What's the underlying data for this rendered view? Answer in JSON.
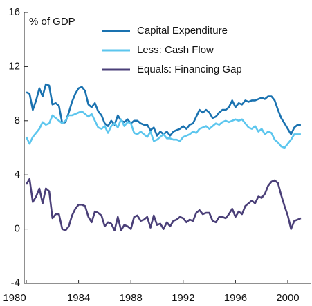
{
  "chart_data": {
    "type": "line",
    "annotations": [
      "% of GDP"
    ],
    "x": [
      1980,
      1980.25,
      1980.5,
      1980.75,
      1981,
      1981.25,
      1981.5,
      1981.75,
      1982,
      1982.25,
      1982.5,
      1982.75,
      1983,
      1983.25,
      1983.5,
      1983.75,
      1984,
      1984.25,
      1984.5,
      1984.75,
      1985,
      1985.25,
      1985.5,
      1985.75,
      1986,
      1986.25,
      1986.5,
      1986.75,
      1987,
      1987.25,
      1987.5,
      1987.75,
      1988,
      1988.25,
      1988.5,
      1988.75,
      1989,
      1989.25,
      1989.5,
      1989.75,
      1990,
      1990.25,
      1990.5,
      1990.75,
      1991,
      1991.25,
      1991.5,
      1991.75,
      1992,
      1992.25,
      1992.5,
      1992.75,
      1993,
      1993.25,
      1993.5,
      1993.75,
      1994,
      1994.25,
      1994.5,
      1994.75,
      1995,
      1995.25,
      1995.5,
      1995.75,
      1996,
      1996.25,
      1996.5,
      1996.75,
      1997,
      1997.25,
      1997.5,
      1997.75,
      1998,
      1998.25,
      1998.5,
      1998.75,
      1999,
      1999.25,
      1999.5,
      1999.75,
      2000,
      2000.25,
      2000.5,
      2000.75,
      2001
    ],
    "series": [
      {
        "name": "Capital Expenditure",
        "color": "#1a72b0",
        "values": [
          10.1,
          10.0,
          8.8,
          9.5,
          10.4,
          9.8,
          10.7,
          10.6,
          9.2,
          9.3,
          9.1,
          7.8,
          7.9,
          8.6,
          9.4,
          10.0,
          10.4,
          10.5,
          10.2,
          9.2,
          9.0,
          9.3,
          8.7,
          8.4,
          7.8,
          7.6,
          8.0,
          7.7,
          8.4,
          8.0,
          7.9,
          8.1,
          7.8,
          8.0,
          8.0,
          7.8,
          7.7,
          7.7,
          7.3,
          7.5,
          6.9,
          7.2,
          7.0,
          7.2,
          6.9,
          7.2,
          7.3,
          7.4,
          7.6,
          7.4,
          7.7,
          7.8,
          8.3,
          8.8,
          8.6,
          8.8,
          8.6,
          8.2,
          8.3,
          8.6,
          8.8,
          8.8,
          9.0,
          9.5,
          9.0,
          9.3,
          9.2,
          9.5,
          9.4,
          9.5,
          9.5,
          9.6,
          9.7,
          9.6,
          9.8,
          9.8,
          9.5,
          8.8,
          8.2,
          7.8,
          7.4,
          7.0,
          7.5,
          7.7,
          7.7
        ]
      },
      {
        "name": "Less: Cash Flow",
        "color": "#5cc6ee",
        "values": [
          6.8,
          6.3,
          6.8,
          7.1,
          7.4,
          7.9,
          7.7,
          7.8,
          8.4,
          8.2,
          8.0,
          7.8,
          8.0,
          8.4,
          8.4,
          8.5,
          8.6,
          8.7,
          8.5,
          8.3,
          8.5,
          8.0,
          7.5,
          7.4,
          7.6,
          7.1,
          7.6,
          7.8,
          7.5,
          8.1,
          7.6,
          7.9,
          7.8,
          7.1,
          7.0,
          7.2,
          7.0,
          6.8,
          7.2,
          6.5,
          6.6,
          6.8,
          7.0,
          6.7,
          6.7,
          6.6,
          6.6,
          6.5,
          6.8,
          6.9,
          7.0,
          7.2,
          7.1,
          7.4,
          7.5,
          7.6,
          7.4,
          7.6,
          7.8,
          7.7,
          7.9,
          8.0,
          7.9,
          8.0,
          8.1,
          8.0,
          8.1,
          7.8,
          7.5,
          7.4,
          7.6,
          7.2,
          7.4,
          7.0,
          7.2,
          7.1,
          6.6,
          6.4,
          6.1,
          6.0,
          6.3,
          6.6,
          7.0,
          7.0,
          7.0
        ]
      },
      {
        "name": "Equals: Financing Gap",
        "color": "#4a3f78",
        "values": [
          3.3,
          3.7,
          2.0,
          2.4,
          3.0,
          1.9,
          3.0,
          2.8,
          0.8,
          1.1,
          1.1,
          0.0,
          -0.1,
          0.2,
          1.0,
          1.5,
          1.8,
          1.8,
          1.7,
          0.9,
          0.5,
          1.3,
          1.2,
          1.0,
          0.2,
          0.5,
          0.4,
          -0.1,
          0.9,
          -0.1,
          0.3,
          0.2,
          0.0,
          0.9,
          1.0,
          0.6,
          0.7,
          0.9,
          0.1,
          1.0,
          0.3,
          0.4,
          0.0,
          0.5,
          0.2,
          0.6,
          0.7,
          0.9,
          0.8,
          0.5,
          0.7,
          0.6,
          1.2,
          1.4,
          1.1,
          1.2,
          1.2,
          0.6,
          0.5,
          0.9,
          0.9,
          0.8,
          1.1,
          1.5,
          0.9,
          1.3,
          1.1,
          1.7,
          1.9,
          2.1,
          1.9,
          2.4,
          2.3,
          2.6,
          3.2,
          3.5,
          3.6,
          3.4,
          2.5,
          1.7,
          1.0,
          0.0,
          0.6,
          0.7,
          0.8
        ]
      }
    ],
    "xlim": [
      1980,
      2001.8
    ],
    "xticks": [
      1980,
      1984,
      1988,
      1992,
      1996,
      2000
    ],
    "ylim": [
      -4,
      16
    ],
    "yticks": [
      16,
      12,
      8,
      4,
      0,
      -4
    ],
    "grid": false,
    "legend": "top"
  }
}
